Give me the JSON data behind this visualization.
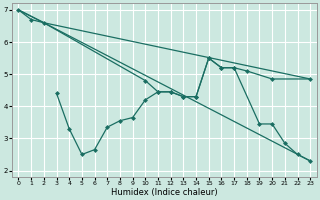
{
  "xlabel": "Humidex (Indice chaleur)",
  "background_color": "#cce8e0",
  "grid_color": "#ffffff",
  "line_color": "#1a6e62",
  "line1_x": [
    0,
    1,
    2,
    10,
    11,
    12,
    13,
    14,
    15,
    16,
    17,
    18,
    20,
    23
  ],
  "line1_y": [
    7.0,
    6.7,
    6.6,
    4.8,
    4.45,
    4.45,
    4.3,
    4.3,
    5.5,
    5.2,
    5.2,
    5.1,
    4.85,
    4.85
  ],
  "line2_x": [
    0,
    2,
    23
  ],
  "line2_y": [
    7.0,
    6.6,
    4.85
  ],
  "line3_x": [
    3,
    4,
    5,
    6,
    7,
    8,
    9,
    10,
    11,
    12,
    13,
    14,
    15,
    16,
    17,
    19,
    20,
    21,
    22,
    23
  ],
  "line3_y": [
    4.4,
    3.3,
    2.5,
    2.65,
    3.35,
    3.55,
    3.65,
    4.2,
    4.45,
    4.45,
    4.3,
    4.3,
    5.5,
    5.2,
    5.2,
    3.45,
    3.45,
    2.85,
    2.5,
    2.3
  ],
  "line4_x": [
    0,
    2,
    23
  ],
  "line4_y": [
    7.0,
    6.6,
    2.3
  ],
  "ylim": [
    1.8,
    7.2
  ],
  "xlim": [
    -0.5,
    23.5
  ],
  "yticks": [
    2,
    3,
    4,
    5,
    6,
    7
  ],
  "xticks": [
    0,
    1,
    2,
    3,
    4,
    5,
    6,
    7,
    8,
    9,
    10,
    11,
    12,
    13,
    14,
    15,
    16,
    17,
    18,
    19,
    20,
    21,
    22,
    23
  ]
}
